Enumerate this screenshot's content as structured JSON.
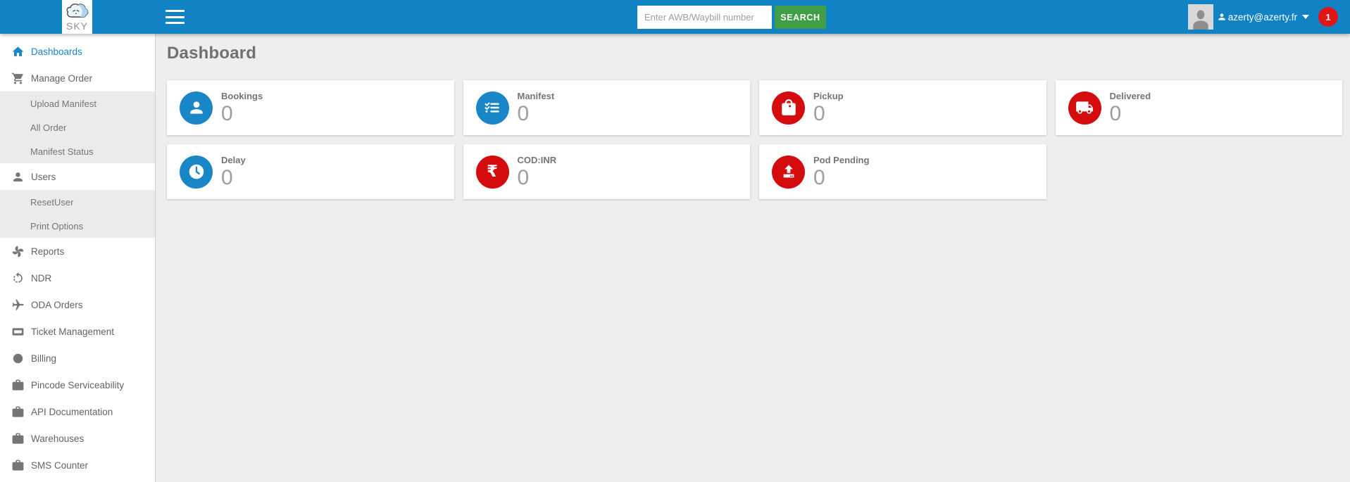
{
  "colors": {
    "topbar_blue": "#1183c4",
    "accent_blue": "#1886c7",
    "accent_red": "#d50c0d",
    "search_green": "#3f9e46",
    "badge_red": "#e01616",
    "sidebar_active_blue": "#1783c6"
  },
  "topbar": {
    "logo": {
      "text": "SKY",
      "icon": "cloud-logo-icon"
    },
    "menu_icon": "hamburger-icon",
    "search": {
      "placeholder": "Enter AWB/Waybill number",
      "button_label": "SEARCH"
    },
    "user": {
      "email": "azerty@azerty.fr",
      "icon": "user-icon",
      "caret_icon": "caret-down-icon",
      "notification_count": "1"
    }
  },
  "sidebar": {
    "items": [
      {
        "label": "Dashboards",
        "icon": "home-icon",
        "type": "item",
        "active": true
      },
      {
        "label": "Manage Order",
        "icon": "cart-icon",
        "type": "item",
        "active": false
      },
      {
        "label": "Upload Manifest",
        "icon": "",
        "type": "subitem",
        "active": false
      },
      {
        "label": "All Order",
        "icon": "",
        "type": "subitem",
        "active": false
      },
      {
        "label": "Manifest Status",
        "icon": "",
        "type": "subitem",
        "active": false
      },
      {
        "label": "Users",
        "icon": "person-icon",
        "type": "item",
        "active": false
      },
      {
        "label": "ResetUser",
        "icon": "",
        "type": "subitem",
        "active": false
      },
      {
        "label": "Print Options",
        "icon": "",
        "type": "subitem",
        "active": false
      },
      {
        "label": "Reports",
        "icon": "fan-icon",
        "type": "item",
        "active": false
      },
      {
        "label": "NDR",
        "icon": "undo-icon",
        "type": "item",
        "active": false
      },
      {
        "label": "ODA Orders",
        "icon": "airplane-icon",
        "type": "item",
        "active": false
      },
      {
        "label": "Ticket Management",
        "icon": "ticket-icon",
        "type": "item",
        "active": false
      },
      {
        "label": "Billing",
        "icon": "circle-icon",
        "type": "item",
        "active": false
      },
      {
        "label": "Pincode Serviceability",
        "icon": "briefcase-icon",
        "type": "item",
        "active": false
      },
      {
        "label": "API Documentation",
        "icon": "briefcase-icon",
        "type": "item",
        "active": false
      },
      {
        "label": "Warehouses",
        "icon": "briefcase-icon",
        "type": "item",
        "active": false
      },
      {
        "label": "SMS Counter",
        "icon": "briefcase-icon",
        "type": "item",
        "active": false
      }
    ]
  },
  "main": {
    "title": "Dashboard",
    "cards": [
      {
        "label": "Bookings",
        "value": "0",
        "icon": "person-icon",
        "color": "#1886c7"
      },
      {
        "label": "Manifest",
        "value": "0",
        "icon": "checklist-icon",
        "color": "#1886c7"
      },
      {
        "label": "Pickup",
        "value": "0",
        "icon": "shopping-bag-icon",
        "color": "#d50c0d"
      },
      {
        "label": "Delivered",
        "value": "0",
        "icon": "truck-icon",
        "color": "#d50c0d"
      },
      {
        "label": "Delay",
        "value": "0",
        "icon": "clock-icon",
        "color": "#1886c7"
      },
      {
        "label": "COD:INR",
        "value": "0",
        "icon": "rupee-icon",
        "color": "#d50c0d"
      },
      {
        "label": "Pod Pending",
        "value": "0",
        "icon": "upload-icon",
        "color": "#d50c0d"
      }
    ]
  }
}
